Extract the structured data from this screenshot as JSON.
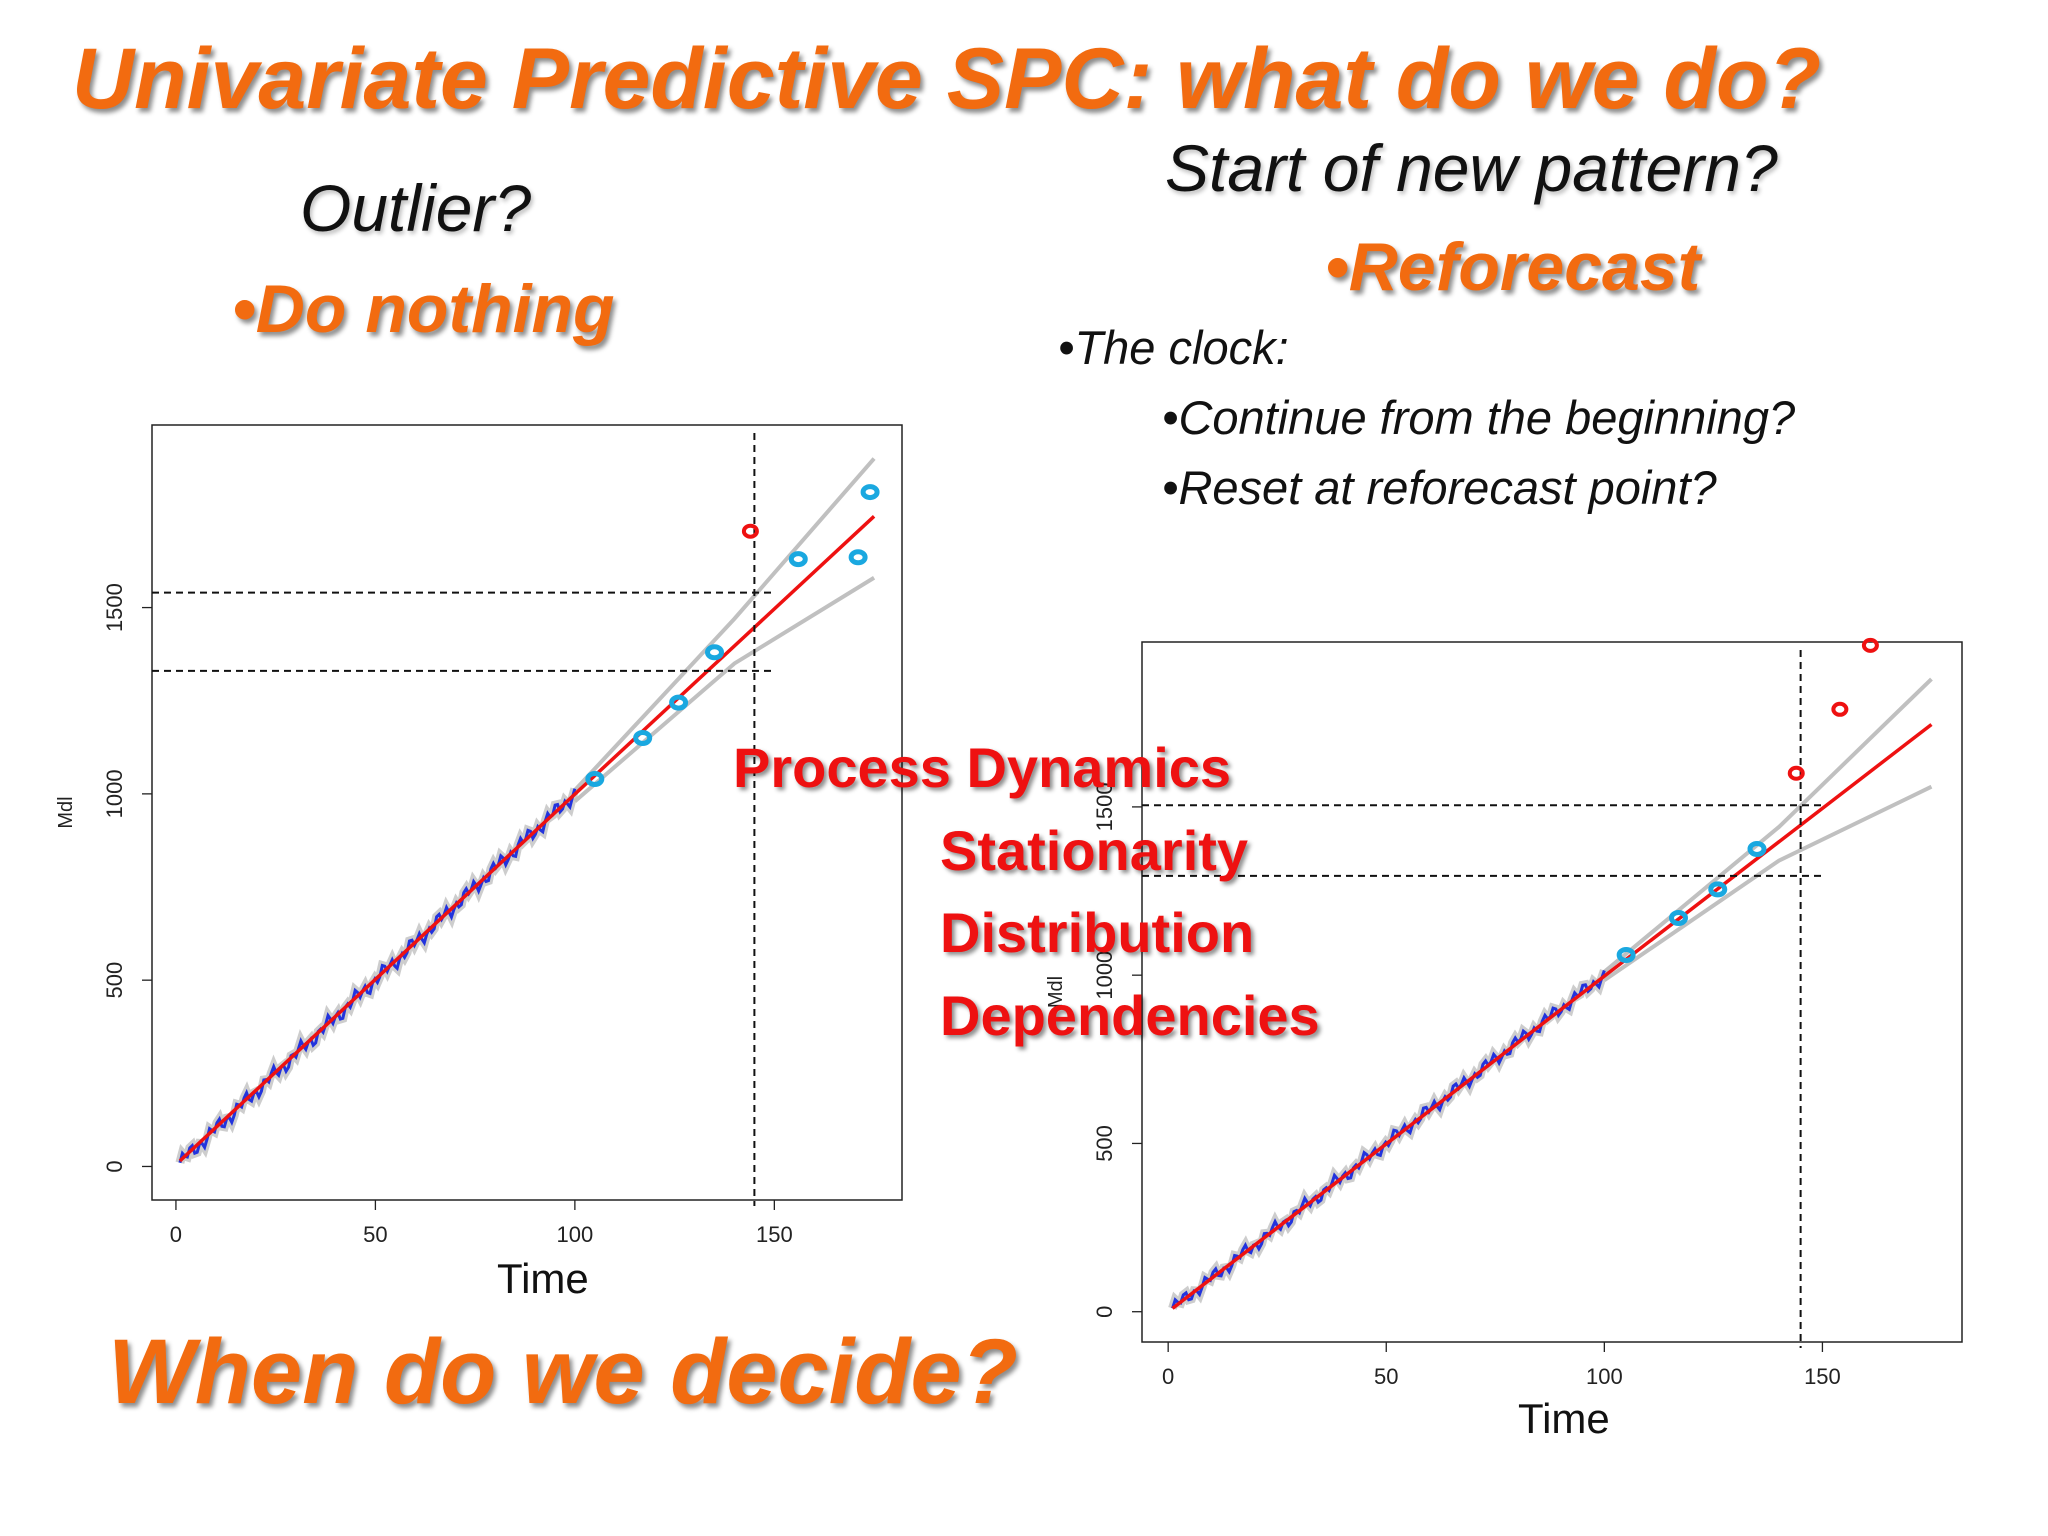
{
  "slide": {
    "title": "Univariate Predictive SPC: what do we do?",
    "outlier_question": "Outlier?",
    "outlier_action": "•Do nothing",
    "pattern_question": "Start of new pattern?",
    "pattern_action": "•Reforecast",
    "clock_label": "•The clock:",
    "clock_options": [
      "•Continue from the beginning?",
      "•Reset at reforecast point?"
    ],
    "when_decide": "When do we decide?",
    "overlay": [
      "Process Dynamics",
      "Stationarity",
      "Distribution",
      "Dependencies"
    ],
    "colors": {
      "orange": "#f26b10",
      "overlay_red": "#ee1111",
      "fit_line": "#ee1111",
      "band": "#c0c0c0",
      "observed_noise": "#2233dd",
      "new_point": "#1aa8e0",
      "alarm_point": "#ee1111"
    }
  },
  "chart_data": [
    {
      "type": "line",
      "title": "",
      "xlabel": "Time",
      "ylabel": "Mdl",
      "xlim": [
        -6,
        182
      ],
      "ylim": [
        -90,
        1990
      ],
      "xticks": [
        0,
        50,
        100,
        150
      ],
      "yticks": [
        0,
        500,
        1000,
        1500
      ],
      "xtick_labels": [
        "0",
        "50",
        "100",
        "150"
      ],
      "ytick_labels": [
        "0",
        "500",
        "1000",
        "1500"
      ],
      "fit_line": {
        "x": [
          1,
          175
        ],
        "y": [
          15,
          1745
        ]
      },
      "upper_band": {
        "x": [
          100,
          140,
          175
        ],
        "y": [
          1010,
          1470,
          1900
        ]
      },
      "lower_band": {
        "x": [
          100,
          140,
          175
        ],
        "y": [
          980,
          1350,
          1580
        ]
      },
      "observed": {
        "x_start": 1,
        "x_end": 100,
        "y_start": 10,
        "y_end": 1000
      },
      "new_points": {
        "x": [
          105,
          117,
          126,
          135,
          156,
          171,
          174
        ],
        "y": [
          1040,
          1150,
          1245,
          1380,
          1630,
          1635,
          1810
        ]
      },
      "alarm_points": {
        "x": [
          144
        ],
        "y": [
          1705
        ]
      },
      "limit_hlines": [
        {
          "y": 1540,
          "x_from": -6,
          "x_to": 150
        },
        {
          "y": 1330,
          "x_from": -6,
          "x_to": 150
        }
      ],
      "decision_vline": {
        "x": 145
      }
    },
    {
      "type": "line",
      "title": "",
      "xlabel": "Time",
      "ylabel": "Mdl",
      "xlim": [
        -6,
        182
      ],
      "ylim": [
        -90,
        1990
      ],
      "xticks": [
        0,
        50,
        100,
        150
      ],
      "yticks": [
        0,
        500,
        1000,
        1500
      ],
      "xtick_labels": [
        "0",
        "50",
        "100",
        "150"
      ],
      "ytick_labels": [
        "0",
        "500",
        "1000",
        "1500"
      ],
      "fit_line": {
        "x": [
          1,
          175
        ],
        "y": [
          10,
          1745
        ]
      },
      "upper_band": {
        "x": [
          100,
          140,
          175
        ],
        "y": [
          1010,
          1440,
          1880
        ]
      },
      "lower_band": {
        "x": [
          100,
          140,
          175
        ],
        "y": [
          985,
          1340,
          1560
        ]
      },
      "observed": {
        "x_start": 1,
        "x_end": 100,
        "y_start": 10,
        "y_end": 1000
      },
      "new_points": {
        "x": [
          105,
          117,
          126,
          135
        ],
        "y": [
          1060,
          1170,
          1255,
          1375
        ]
      },
      "alarm_points": {
        "x": [
          144,
          154,
          161
        ],
        "y": [
          1600,
          1790,
          1980
        ]
      },
      "limit_hlines": [
        {
          "y": 1505,
          "x_from": -6,
          "x_to": 150
        },
        {
          "y": 1295,
          "x_from": -6,
          "x_to": 150
        }
      ],
      "decision_vline": {
        "x": 145
      }
    }
  ]
}
